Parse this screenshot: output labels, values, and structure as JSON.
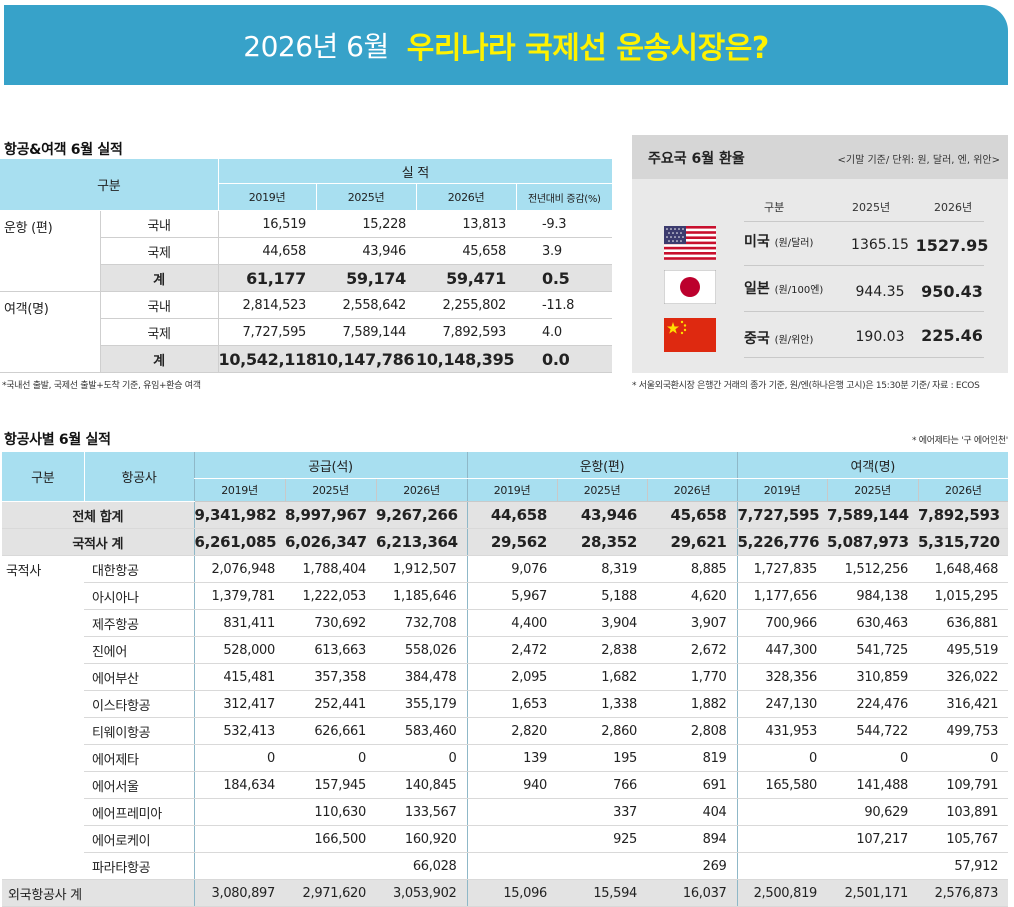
{
  "banner": {
    "date": "2026년 6월",
    "title": "우리나라 국제선 운송시장은?"
  },
  "perf": {
    "title": "항공&여객 6월 실적",
    "header_category": "구분",
    "header_actual": "실 적",
    "years": [
      "2019년",
      "2025년",
      "2026년"
    ],
    "yoy_header": "전년대비 증감(%)",
    "groups": [
      {
        "label": "운항 (편)",
        "rows": [
          {
            "sub": "국내",
            "v": [
              "16,519",
              "15,228",
              "13,813",
              "-9.3"
            ]
          },
          {
            "sub": "국제",
            "v": [
              "44,658",
              "43,946",
              "45,658",
              "3.9"
            ]
          },
          {
            "sub": "계",
            "v": [
              "61,177",
              "59,174",
              "59,471",
              "0.5"
            ]
          }
        ]
      },
      {
        "label": "여객(명)",
        "rows": [
          {
            "sub": "국내",
            "v": [
              "2,814,523",
              "2,558,642",
              "2,255,802",
              "-11.8"
            ]
          },
          {
            "sub": "국제",
            "v": [
              "7,727,595",
              "7,589,144",
              "7,892,593",
              "4.0"
            ]
          },
          {
            "sub": "계",
            "v": [
              "10,542,118",
              "10,147,786",
              "10,148,395",
              "0.0"
            ]
          }
        ]
      }
    ],
    "note": "*국내선 출발, 국제선 출발+도착 기준, 유임+환승 여객"
  },
  "fx": {
    "title": "주요국 6월 환율",
    "unit": "<기말 기준/ 단위: 원, 달러, 엔, 위안>",
    "col_category": "구분",
    "col_y1": "2025년",
    "col_y2": "2026년",
    "rows": [
      {
        "flag": "usa-flag-icon",
        "name": "미국",
        "unit": "(원/달러)",
        "v1": "1365.15",
        "v2": "1527.95"
      },
      {
        "flag": "japan-flag-icon",
        "name": "일본",
        "unit": "(원/100엔)",
        "v1": "944.35",
        "v2": "950.43"
      },
      {
        "flag": "china-flag-icon",
        "name": "중국",
        "unit": "(원/위안)",
        "v1": "190.03",
        "v2": "225.46"
      }
    ],
    "note": "* 서울외국환시장 은행간 거래의 종가 기준, 원/엔(하나은행 고시)은 15:30분 기준/ 자료 : ECOS"
  },
  "airline": {
    "title": "항공사별 6월 실적",
    "note": "* 에어제타는 '구 에어인천'",
    "header_category": "구분",
    "header_airline": "항공사",
    "group_headers": [
      "공급(석)",
      "운항(편)",
      "여객(명)"
    ],
    "years": [
      "2019년",
      "2025년",
      "2026년",
      "2019년",
      "2025년",
      "2026년",
      "2019년",
      "2025년",
      "2026년"
    ],
    "grand_total": {
      "label": "전체 합계",
      "v": [
        "9,341,982",
        "8,997,967",
        "9,267,266",
        "44,658",
        "43,946",
        "45,658",
        "7,727,595",
        "7,589,144",
        "7,892,593"
      ]
    },
    "domestic_total": {
      "label": "국적사 계",
      "v": [
        "6,261,085",
        "6,026,347",
        "6,213,364",
        "29,562",
        "28,352",
        "29,621",
        "5,226,776",
        "5,087,973",
        "5,315,720"
      ]
    },
    "domestic_label": "국적사",
    "rows": [
      {
        "name": "대한항공",
        "v": [
          "2,076,948",
          "1,788,404",
          "1,912,507",
          "9,076",
          "8,319",
          "8,885",
          "1,727,835",
          "1,512,256",
          "1,648,468"
        ]
      },
      {
        "name": "아시아나",
        "v": [
          "1,379,781",
          "1,222,053",
          "1,185,646",
          "5,967",
          "5,188",
          "4,620",
          "1,177,656",
          "984,138",
          "1,015,295"
        ]
      },
      {
        "name": "제주항공",
        "v": [
          "831,411",
          "730,692",
          "732,708",
          "4,400",
          "3,904",
          "3,907",
          "700,966",
          "630,463",
          "636,881"
        ]
      },
      {
        "name": "진에어",
        "v": [
          "528,000",
          "613,663",
          "558,026",
          "2,472",
          "2,838",
          "2,672",
          "447,300",
          "541,725",
          "495,519"
        ]
      },
      {
        "name": "에어부산",
        "v": [
          "415,481",
          "357,358",
          "384,478",
          "2,095",
          "1,682",
          "1,770",
          "328,356",
          "310,859",
          "326,022"
        ]
      },
      {
        "name": "이스타항공",
        "v": [
          "312,417",
          "252,441",
          "355,179",
          "1,653",
          "1,338",
          "1,882",
          "247,130",
          "224,476",
          "316,421"
        ]
      },
      {
        "name": "티웨이항공",
        "v": [
          "532,413",
          "626,661",
          "583,460",
          "2,820",
          "2,860",
          "2,808",
          "431,953",
          "544,722",
          "499,753"
        ]
      },
      {
        "name": "에어제타",
        "v": [
          "0",
          "0",
          "0",
          "139",
          "195",
          "819",
          "0",
          "0",
          "0"
        ]
      },
      {
        "name": "에어서울",
        "v": [
          "184,634",
          "157,945",
          "140,845",
          "940",
          "766",
          "691",
          "165,580",
          "141,488",
          "109,791"
        ]
      },
      {
        "name": "에어프레미아",
        "v": [
          "",
          "110,630",
          "133,567",
          "",
          "337",
          "404",
          "",
          "90,629",
          "103,891"
        ]
      },
      {
        "name": "에어로케이",
        "v": [
          "",
          "166,500",
          "160,920",
          "",
          "925",
          "894",
          "",
          "107,217",
          "105,767"
        ]
      },
      {
        "name": "파라타항공",
        "v": [
          "",
          "",
          "66,028",
          "",
          "",
          "269",
          "",
          "",
          "57,912"
        ]
      }
    ],
    "foreign_total": {
      "label": "외국항공사 계",
      "v": [
        "3,080,897",
        "2,971,620",
        "3,053,902",
        "15,096",
        "15,594",
        "16,037",
        "2,500,819",
        "2,501,171",
        "2,576,873"
      ]
    }
  }
}
